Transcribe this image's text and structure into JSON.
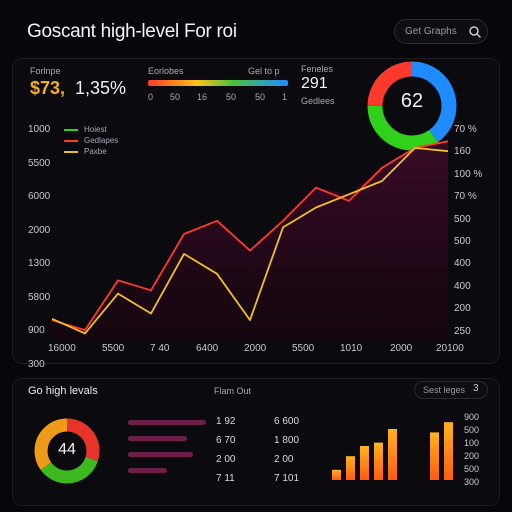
{
  "header": {
    "title": "Goscant high-level For roi",
    "search_label": "Get Graphs"
  },
  "kpis": {
    "label_left": "Forlnpe",
    "amount": "$73,",
    "percent": "1,35%",
    "bar_label": "Eorlobes",
    "bar_label_right": "Gel to p",
    "bar_ticks": [
      "0",
      "50",
      "16",
      "50",
      "50",
      "1"
    ],
    "right_label": "Feneles",
    "right_value": "291",
    "right_sub": "Gedlees"
  },
  "donut": {
    "center_value": "62",
    "segments": [
      {
        "name": "blue",
        "value": 40,
        "color": "#1e8cff"
      },
      {
        "name": "green",
        "value": 35,
        "color": "#2fd11a"
      },
      {
        "name": "red",
        "value": 25,
        "color": "#ff3a2c"
      }
    ]
  },
  "legend": [
    {
      "label": "Hoiest",
      "color": "#2fd11a"
    },
    {
      "label": "Gedlapes",
      "color": "#ff3a2c"
    },
    {
      "label": "Paxbe",
      "color": "#f0c020"
    }
  ],
  "axes": {
    "y_left": [
      "1000",
      "5500",
      "6000",
      "2000",
      "1300",
      "5800",
      "900",
      "300"
    ],
    "y_right": [
      "70 %",
      "160",
      "100 %",
      "70 %",
      "500",
      "500",
      "400",
      "400",
      "200",
      "250"
    ],
    "x": [
      "16000",
      "5500",
      "7 40",
      "6400",
      "2000",
      "5500",
      "1010",
      "2000",
      "20100"
    ]
  },
  "chart_data": {
    "type": "line",
    "x": [
      1,
      2,
      3,
      4,
      5,
      6,
      7,
      8,
      9,
      10,
      11,
      12,
      13
    ],
    "series": [
      {
        "name": "Gedlapes",
        "color": "#ff3a2c",
        "values": [
          300,
          150,
          900,
          750,
          1600,
          1800,
          1350,
          1800,
          2300,
          2100,
          2600,
          2900,
          3000
        ]
      },
      {
        "name": "Paxbe",
        "color": "#f0c020",
        "values": [
          320,
          100,
          700,
          400,
          1300,
          1000,
          300,
          1700,
          2000,
          2200,
          2400,
          2900,
          2850
        ]
      }
    ],
    "ylim": [
      0,
      3200
    ]
  },
  "bottom": {
    "title": "Go high levals",
    "center_label": "Flam Out",
    "pill_label": "Sest leges",
    "pill_icon": "3",
    "donut_value": "44",
    "donut_segments": [
      {
        "name": "red",
        "value": 30,
        "color": "#e8332a"
      },
      {
        "name": "green",
        "value": 35,
        "color": "#3db81e"
      },
      {
        "name": "orange",
        "value": 35,
        "color": "#f09a1a"
      }
    ],
    "hbars": [
      0.6,
      0.45,
      0.5,
      0.3
    ],
    "col1": [
      "1 92",
      "6 70",
      "2 00",
      "7 11"
    ],
    "col2": [
      "6 600",
      "1 800",
      "2 00",
      "7 101"
    ],
    "bars_a": [
      0.15,
      0.35,
      0.5,
      0.55,
      0.75
    ],
    "bars_b": [
      0.7,
      0.85
    ],
    "bar_axis": [
      "900",
      "500",
      "100",
      "200",
      "500",
      "300"
    ]
  }
}
